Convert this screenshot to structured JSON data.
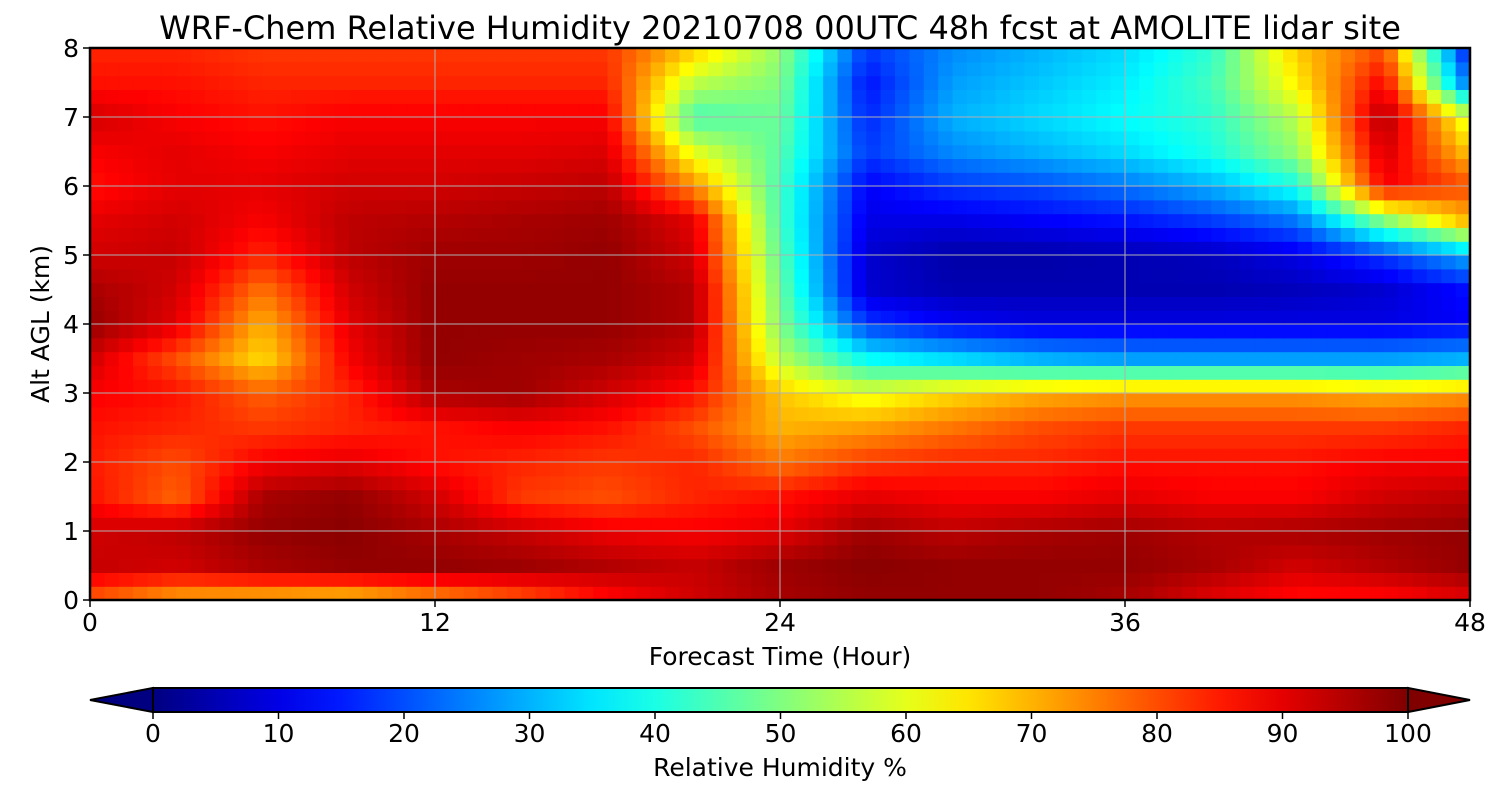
{
  "chart_data": {
    "type": "heatmap",
    "title": "WRF-Chem Relative Humidity 20210708 00UTC 48h fcst at AMOLITE lidar site",
    "xlabel": "Forecast Time (Hour)",
    "ylabel": "Alt AGL (km)",
    "xlim": [
      0,
      48
    ],
    "ylim": [
      0,
      8
    ],
    "xticks": [
      0,
      12,
      24,
      36,
      48
    ],
    "yticks": [
      0,
      1,
      2,
      3,
      4,
      5,
      6,
      7,
      8
    ],
    "grid": true,
    "colormap": "jet",
    "colorbar": {
      "label": "Relative Humidity %",
      "orientation": "horizontal",
      "placement": "bottom",
      "extend": "both",
      "range": [
        0,
        100
      ],
      "ticks": [
        0,
        10,
        20,
        30,
        40,
        50,
        60,
        70,
        80,
        90,
        100
      ]
    },
    "x": [
      0,
      3,
      6,
      9,
      12,
      15,
      18,
      21,
      24,
      27,
      30,
      33,
      36,
      39,
      42,
      45,
      48
    ],
    "y": [
      0,
      0.5,
      1,
      1.5,
      2,
      2.5,
      3,
      3.5,
      4,
      4.5,
      5,
      5.5,
      6,
      6.5,
      7,
      7.5,
      8
    ],
    "z": [
      [
        78,
        70,
        68,
        66,
        72,
        78,
        86,
        92,
        96,
        98,
        98,
        98,
        96,
        90,
        86,
        86,
        90
      ],
      [
        93,
        92,
        96,
        98,
        98,
        97,
        95,
        93,
        97,
        99,
        98,
        98,
        98,
        96,
        92,
        95,
        98
      ],
      [
        92,
        94,
        98,
        99,
        96,
        93,
        89,
        88,
        90,
        97,
        94,
        96,
        97,
        95,
        96,
        97,
        98
      ],
      [
        86,
        78,
        96,
        98,
        92,
        82,
        80,
        84,
        86,
        90,
        88,
        88,
        90,
        88,
        88,
        92,
        94
      ],
      [
        85,
        80,
        88,
        90,
        86,
        84,
        82,
        84,
        76,
        82,
        84,
        84,
        86,
        86,
        86,
        88,
        88
      ],
      [
        86,
        84,
        82,
        84,
        86,
        88,
        86,
        80,
        70,
        72,
        76,
        80,
        82,
        82,
        82,
        82,
        84
      ],
      [
        88,
        86,
        78,
        84,
        96,
        97,
        92,
        86,
        68,
        60,
        66,
        70,
        72,
        72,
        72,
        70,
        72
      ],
      [
        92,
        80,
        66,
        88,
        98,
        97,
        96,
        92,
        56,
        38,
        34,
        30,
        28,
        28,
        28,
        28,
        30
      ],
      [
        98,
        90,
        70,
        90,
        98,
        98,
        98,
        95,
        50,
        18,
        12,
        10,
        10,
        10,
        10,
        10,
        12
      ],
      [
        96,
        92,
        76,
        92,
        98,
        98,
        98,
        95,
        48,
        8,
        5,
        5,
        5,
        5,
        6,
        8,
        14
      ],
      [
        92,
        93,
        84,
        94,
        97,
        97,
        98,
        92,
        46,
        8,
        4,
        4,
        5,
        6,
        10,
        18,
        30
      ],
      [
        90,
        92,
        88,
        94,
        95,
        96,
        97,
        90,
        44,
        10,
        10,
        12,
        14,
        18,
        24,
        50,
        70
      ],
      [
        86,
        90,
        90,
        92,
        92,
        93,
        94,
        74,
        44,
        12,
        18,
        20,
        24,
        30,
        40,
        88,
        80
      ],
      [
        88,
        90,
        88,
        90,
        90,
        90,
        91,
        60,
        46,
        18,
        26,
        30,
        34,
        40,
        52,
        92,
        68
      ],
      [
        92,
        88,
        86,
        88,
        88,
        88,
        88,
        44,
        48,
        16,
        30,
        34,
        38,
        42,
        56,
        96,
        58
      ],
      [
        86,
        86,
        84,
        84,
        84,
        84,
        84,
        56,
        50,
        14,
        28,
        32,
        36,
        44,
        64,
        88,
        22
      ],
      [
        84,
        84,
        82,
        82,
        82,
        82,
        82,
        68,
        52,
        18,
        26,
        30,
        34,
        42,
        68,
        80,
        12
      ]
    ]
  }
}
